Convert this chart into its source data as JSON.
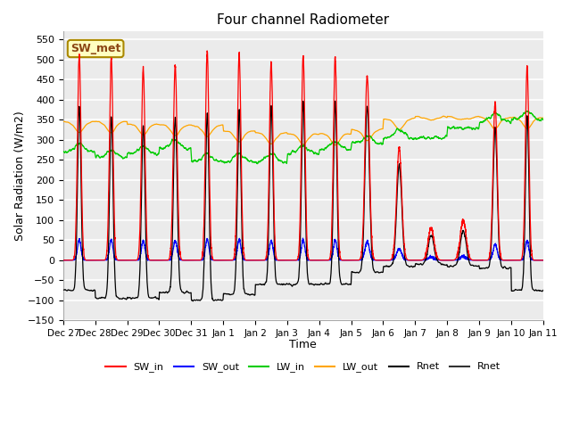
{
  "title": "Four channel Radiometer",
  "xlabel": "Time",
  "ylabel": "Solar Radiation (W/m2)",
  "ylim": [
    -150,
    570
  ],
  "yticks": [
    -150,
    -100,
    -50,
    0,
    50,
    100,
    150,
    200,
    250,
    300,
    350,
    400,
    450,
    500,
    550
  ],
  "xtick_labels": [
    "Dec 27",
    "Dec 28",
    "Dec 29",
    "Dec 30",
    "Dec 31",
    "Jan 1",
    "Jan 2",
    "Jan 3",
    "Jan 4",
    "Jan 5",
    "Jan 6",
    "Jan 7",
    "Jan 8",
    "Jan 9",
    "Jan 10",
    "Jan 11"
  ],
  "annotation_text": "SW_met",
  "annotation_bg": "#FFFFC0",
  "annotation_border": "#AA8800",
  "colors": {
    "SW_in": "#FF0000",
    "SW_out": "#0000FF",
    "LW_in": "#00CC00",
    "LW_out": "#FFA500",
    "Rnet": "#000000"
  },
  "legend_entries": [
    "SW_in",
    "SW_out",
    "LW_in",
    "LW_out",
    "Rnet",
    "Rnet"
  ],
  "legend_colors": [
    "#FF0000",
    "#0000FF",
    "#00CC00",
    "#FFA500",
    "#000000",
    "#333333"
  ],
  "background_color": "#EBEBEB",
  "grid_color": "#FFFFFF",
  "n_days": 15,
  "pts_per_day": 288
}
